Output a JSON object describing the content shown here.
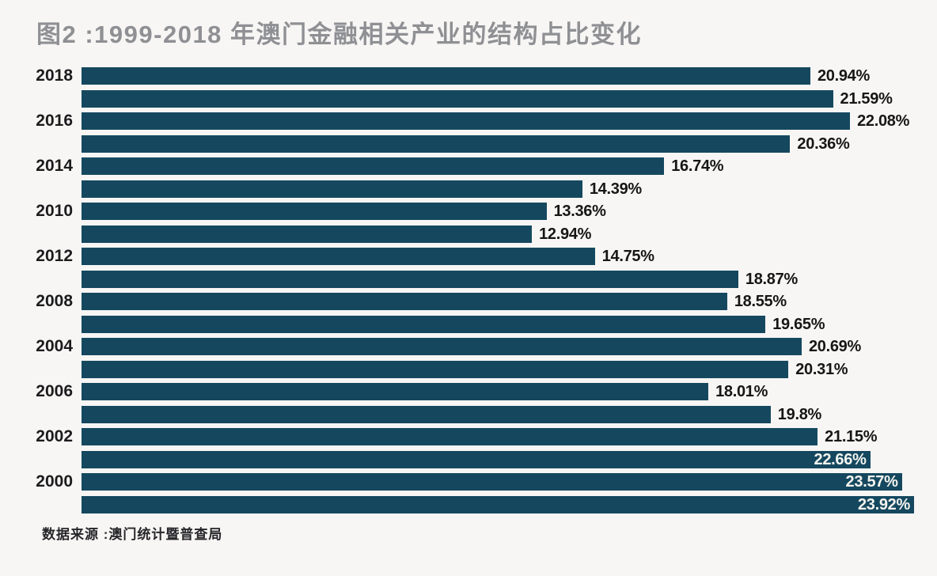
{
  "chart_data": {
    "type": "bar",
    "orientation": "horizontal",
    "title": "图2 :1999-2018 年澳门金融相关产业的结构占比变化",
    "source": "数据来源 :澳门统计暨普查局",
    "xlabel": "",
    "ylabel": "",
    "xlim": [
      0,
      23.92
    ],
    "xmax": 23.92,
    "grid": false,
    "legend": "none",
    "value_unit": "%",
    "colors": {
      "bar": "#15485f",
      "title": "#8f9094",
      "value_label": "#161616",
      "value_label_inside": "#f4f4ef",
      "background": "#f7f6f4"
    },
    "rows": [
      {
        "year": "2018",
        "value": 20.94,
        "label": "20.94%",
        "inside": false
      },
      {
        "year": "",
        "value": 21.59,
        "label": "21.59%",
        "inside": false
      },
      {
        "year": "2016",
        "value": 22.08,
        "label": "22.08%",
        "inside": false
      },
      {
        "year": "",
        "value": 20.36,
        "label": "20.36%",
        "inside": false
      },
      {
        "year": "2014",
        "value": 16.74,
        "label": "16.74%",
        "inside": false
      },
      {
        "year": "",
        "value": 14.39,
        "label": "14.39%",
        "inside": false
      },
      {
        "year": "2010",
        "value": 13.36,
        "label": "13.36%",
        "inside": false
      },
      {
        "year": "",
        "value": 12.94,
        "label": "12.94%",
        "inside": false
      },
      {
        "year": "2012",
        "value": 14.75,
        "label": "14.75%",
        "inside": false
      },
      {
        "year": "",
        "value": 18.87,
        "label": "18.87%",
        "inside": false
      },
      {
        "year": "2008",
        "value": 18.55,
        "label": "18.55%",
        "inside": false
      },
      {
        "year": "",
        "value": 19.65,
        "label": "19.65%",
        "inside": false
      },
      {
        "year": "2004",
        "value": 20.69,
        "label": "20.69%",
        "inside": false
      },
      {
        "year": "",
        "value": 20.31,
        "label": "20.31%",
        "inside": false
      },
      {
        "year": "2006",
        "value": 18.01,
        "label": "18.01%",
        "inside": false
      },
      {
        "year": "",
        "value": 19.8,
        "label": "19.8%",
        "inside": false
      },
      {
        "year": "2002",
        "value": 21.15,
        "label": "21.15%",
        "inside": false
      },
      {
        "year": "",
        "value": 22.66,
        "label": "22.66%",
        "inside": true
      },
      {
        "year": "2000",
        "value": 23.57,
        "label": "23.57%",
        "inside": true
      },
      {
        "year": "",
        "value": 23.92,
        "label": "23.92%",
        "inside": true
      }
    ]
  }
}
